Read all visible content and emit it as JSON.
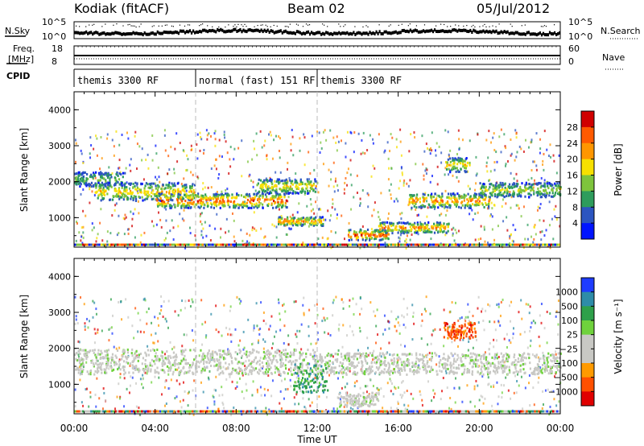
{
  "header": {
    "station": "Kodiak (fitACF)",
    "beam": "Beam 02",
    "date": "05/Jul/2012"
  },
  "top_panel": {
    "nsky_label": "N.Sky",
    "nsearch_label": "N.Search",
    "nsky_ticks": [
      "10^5",
      "10^0"
    ],
    "nsearch_ticks": [
      "10^5",
      "10^0"
    ],
    "freq_label_1": "Freq.",
    "freq_label_2": "[MHz]",
    "freq_ticks": [
      "18",
      "8"
    ],
    "nave_label": "Nave",
    "nave_ticks": [
      "60",
      "0"
    ],
    "cpid_label": "CPID",
    "cpid_segments": [
      {
        "label": "themis 3300 RF",
        "start_h": 0,
        "end_h": 6
      },
      {
        "label": "normal (fast) 151 RF",
        "start_h": 6,
        "end_h": 12
      },
      {
        "label": "themis 3300 RF",
        "start_h": 12,
        "end_h": 24
      }
    ]
  },
  "chart_data": [
    {
      "type": "heatmap",
      "panel": "power",
      "ylabel": "Slant Range [km]",
      "ylim": [
        180,
        4500
      ],
      "yticks": [
        1000,
        2000,
        3000,
        4000
      ],
      "xlim": [
        0,
        24
      ],
      "colorbar_label": "Power [dB]",
      "colorbar_ticks": [
        "28",
        "24",
        "20",
        "16",
        "12",
        "8",
        "4"
      ],
      "colorbar_colors": [
        "#d00000",
        "#ff5a00",
        "#ff9600",
        "#f7e000",
        "#7ec43c",
        "#2e9c5c",
        "#2c55c0",
        "#0014ff"
      ],
      "bands": [
        {
          "t0": 0.0,
          "t1": 2.5,
          "r0": 1900,
          "r1": 2300,
          "level": 2
        },
        {
          "t0": 1.0,
          "t1": 6.0,
          "r0": 1500,
          "r1": 2000,
          "level": 4
        },
        {
          "t0": 4.0,
          "t1": 10.5,
          "r0": 1300,
          "r1": 1700,
          "level": 6
        },
        {
          "t0": 9.0,
          "t1": 12.0,
          "r0": 1700,
          "r1": 2100,
          "level": 4
        },
        {
          "t0": 10.0,
          "t1": 12.3,
          "r0": 800,
          "r1": 1050,
          "level": 5
        },
        {
          "t0": 13.5,
          "t1": 15.5,
          "r0": 400,
          "r1": 700,
          "level": 6
        },
        {
          "t0": 16.5,
          "t1": 20.5,
          "r0": 1300,
          "r1": 1700,
          "level": 5
        },
        {
          "t0": 20.0,
          "t1": 24.0,
          "r0": 1600,
          "r1": 2000,
          "level": 3
        },
        {
          "t0": 18.3,
          "t1": 19.5,
          "r0": 2300,
          "r1": 2700,
          "level": 4
        },
        {
          "t0": 15.0,
          "t1": 18.5,
          "r0": 600,
          "r1": 900,
          "level": 5
        }
      ]
    },
    {
      "type": "heatmap",
      "panel": "velocity",
      "ylabel": "Slant Range [km]",
      "ylim": [
        180,
        4500
      ],
      "yticks": [
        1000,
        2000,
        3000,
        4000
      ],
      "xlim": [
        0,
        24
      ],
      "xticks": [
        "00:00",
        "04:00",
        "08:00",
        "12:00",
        "16:00",
        "20:00",
        "00:00"
      ],
      "xlabel": "Time UT",
      "colorbar_label": "Velocity [m s⁻¹]",
      "colorbar_ticks": [
        "1000",
        "500",
        "100",
        "25",
        "−25",
        "−100",
        "−500",
        "−1000"
      ],
      "colorbar_colors": [
        "#1e3cff",
        "#2e8ca8",
        "#2ea04a",
        "#6fd23c",
        "#c8c8c4",
        "#c8c8c4",
        "#ff9a00",
        "#ff5000",
        "#e00000"
      ],
      "bands": [
        {
          "t0": 0.0,
          "t1": 12.0,
          "r0": 1300,
          "r1": 2000,
          "level": 4
        },
        {
          "t0": 12.0,
          "t1": 24.0,
          "r0": 1300,
          "r1": 1900,
          "level": 4
        },
        {
          "t0": 10.8,
          "t1": 12.5,
          "r0": 800,
          "r1": 1600,
          "level": 2
        },
        {
          "t0": 18.2,
          "t1": 19.8,
          "r0": 2300,
          "r1": 2750,
          "level": 7
        },
        {
          "t0": 13.0,
          "t1": 15.0,
          "r0": 400,
          "r1": 800,
          "level": 4
        }
      ]
    }
  ]
}
